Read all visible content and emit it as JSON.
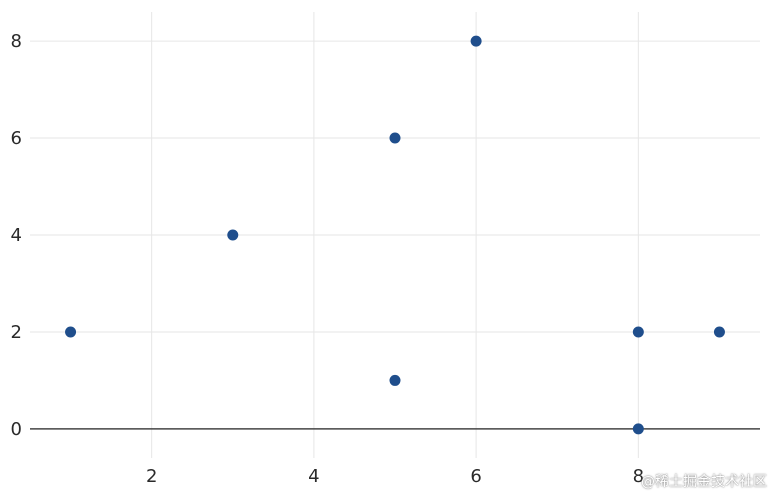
{
  "chart_data": {
    "type": "scatter",
    "points": [
      {
        "x": 1,
        "y": 2
      },
      {
        "x": 3,
        "y": 4
      },
      {
        "x": 5,
        "y": 6
      },
      {
        "x": 5,
        "y": 1
      },
      {
        "x": 6,
        "y": 8
      },
      {
        "x": 8,
        "y": 2
      },
      {
        "x": 8,
        "y": 0
      },
      {
        "x": 9,
        "y": 2
      }
    ],
    "xlim": [
      0.5,
      9.5
    ],
    "ylim": [
      -0.6,
      8.6
    ],
    "x_ticks": [
      2,
      4,
      6,
      8
    ],
    "y_ticks": [
      0,
      2,
      4,
      6,
      8
    ],
    "x_tick_labels": [
      "2",
      "4",
      "6",
      "8"
    ],
    "y_tick_labels": [
      "0",
      "2",
      "4",
      "6",
      "8"
    ],
    "title": "",
    "xlabel": "",
    "ylabel": "",
    "grid": true,
    "zero_line": true,
    "marker_color": "#1f4e8c"
  },
  "watermark": "@稀土掘金技术社区"
}
